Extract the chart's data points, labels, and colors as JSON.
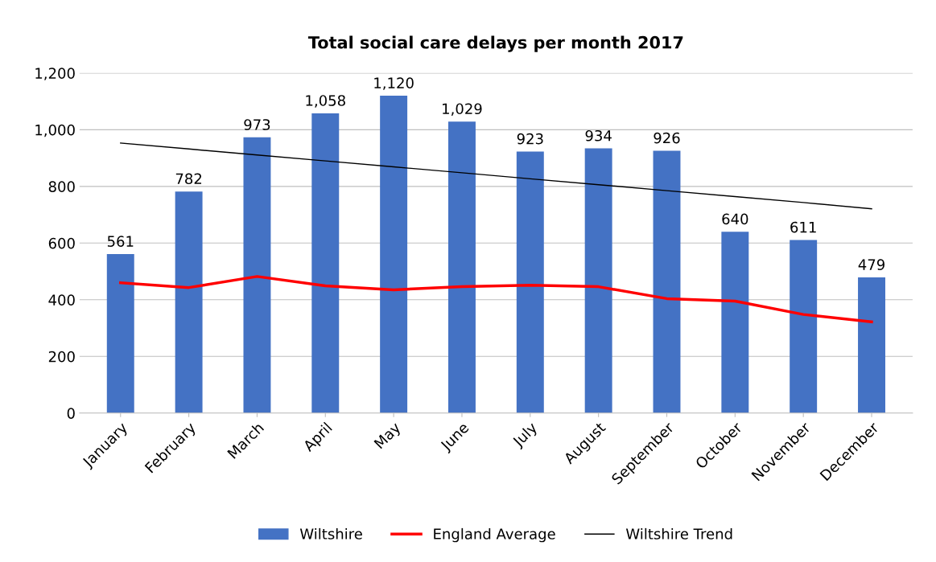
{
  "chart_data": {
    "type": "bar",
    "title": "Total social care delays per month 2017",
    "categories": [
      "January",
      "February",
      "March",
      "April",
      "May",
      "June",
      "July",
      "August",
      "September",
      "October",
      "November",
      "December"
    ],
    "series": [
      {
        "name": "Wiltshire",
        "color": "#4472c4",
        "values": [
          561,
          782,
          973,
          1058,
          1120,
          1029,
          923,
          934,
          926,
          640,
          611,
          479
        ],
        "value_labels": [
          "561",
          "782",
          "973",
          "1,058",
          "1,120",
          "1,029",
          "923",
          "934",
          "926",
          "640",
          "611",
          "479"
        ]
      },
      {
        "name": "England Average",
        "type": "line",
        "color": "#ff0000",
        "values": [
          460,
          443,
          482,
          449,
          435,
          446,
          451,
          446,
          404,
          395,
          348,
          322
        ]
      },
      {
        "name": "Wiltshire Trend",
        "type": "line",
        "color": "#000000",
        "values": [
          953,
          932,
          911,
          890,
          869,
          848,
          827,
          806,
          785,
          764,
          743,
          721
        ]
      }
    ],
    "ylim": [
      0,
      1200
    ],
    "yticks": [
      0,
      {
        "value": 200,
        "label": "200"
      },
      {
        "value": 400,
        "label": "400"
      },
      {
        "value": 600,
        "label": "600"
      },
      {
        "value": 800,
        "label": "800"
      },
      {
        "value": 1000,
        "label": "1,000"
      },
      {
        "value": 1200,
        "label": "1,200"
      }
    ],
    "grid": "y",
    "legend": "bottom"
  }
}
